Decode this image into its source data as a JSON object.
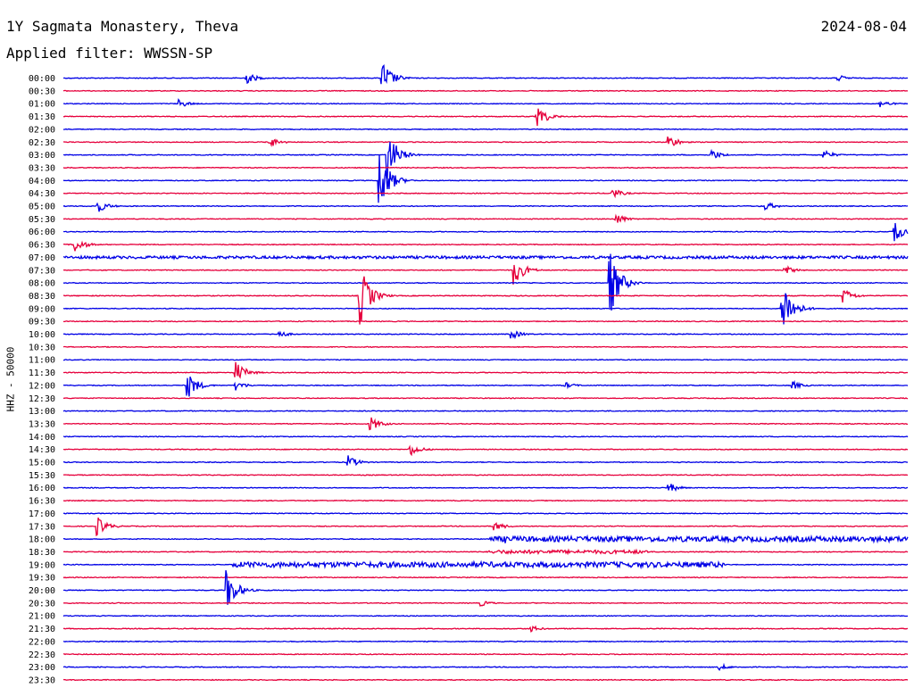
{
  "header": {
    "station": "1Y Sagmata Monastery, Theva",
    "date": "2024-08-04",
    "filter": "Applied filter: WWSSN-SP"
  },
  "axis_label": "HHZ - 50000",
  "chart_data": {
    "type": "line",
    "title": "1Y Sagmata Monastery, Theva",
    "ylabel": "HHZ - 50000",
    "colors": {
      "even_row": "#0000e6",
      "odd_row": "#e6003c"
    },
    "rows": [
      "00:00",
      "00:30",
      "01:00",
      "01:30",
      "02:00",
      "02:30",
      "03:00",
      "03:30",
      "04:00",
      "04:30",
      "05:00",
      "05:30",
      "06:00",
      "06:30",
      "07:00",
      "07:30",
      "08:00",
      "08:30",
      "09:00",
      "09:30",
      "10:00",
      "10:30",
      "11:00",
      "11:30",
      "12:00",
      "12:30",
      "13:00",
      "13:30",
      "14:00",
      "14:30",
      "15:00",
      "15:30",
      "16:00",
      "16:30",
      "17:00",
      "17:30",
      "18:00",
      "18:30",
      "19:00",
      "19:30",
      "20:00",
      "20:30",
      "21:00",
      "21:30",
      "22:00",
      "22:30",
      "23:00",
      "23:30"
    ],
    "events": [
      {
        "row": "00:00",
        "minute": 6.5,
        "amplitude": 7
      },
      {
        "row": "00:00",
        "minute": 11.3,
        "amplitude": 22
      },
      {
        "row": "00:00",
        "minute": 27.5,
        "amplitude": 4
      },
      {
        "row": "01:00",
        "minute": 4.1,
        "amplitude": 5
      },
      {
        "row": "01:00",
        "minute": 29,
        "amplitude": 5
      },
      {
        "row": "01:30",
        "minute": 16.8,
        "amplitude": 15
      },
      {
        "row": "02:30",
        "minute": 7.3,
        "amplitude": 7
      },
      {
        "row": "02:30",
        "minute": 21.5,
        "amplitude": 8
      },
      {
        "row": "03:00",
        "minute": 11.5,
        "amplitude": 30
      },
      {
        "row": "03:00",
        "minute": 23,
        "amplitude": 7
      },
      {
        "row": "03:00",
        "minute": 27,
        "amplitude": 6
      },
      {
        "row": "04:00",
        "minute": 11.2,
        "amplitude": 40
      },
      {
        "row": "04:30",
        "minute": 19.5,
        "amplitude": 6
      },
      {
        "row": "05:00",
        "minute": 1.2,
        "amplitude": 8
      },
      {
        "row": "05:00",
        "minute": 24.9,
        "amplitude": 6
      },
      {
        "row": "05:30",
        "minute": 19.6,
        "amplitude": 7
      },
      {
        "row": "06:00",
        "minute": 29.5,
        "amplitude": 12
      },
      {
        "row": "06:30",
        "minute": 0.4,
        "amplitude": 9
      },
      {
        "row": "07:30",
        "minute": 16,
        "amplitude": 18
      },
      {
        "row": "07:30",
        "minute": 25.6,
        "amplitude": 6
      },
      {
        "row": "08:00",
        "minute": 19.4,
        "amplitude": 40
      },
      {
        "row": "08:30",
        "minute": 10.5,
        "amplitude": 40
      },
      {
        "row": "08:30",
        "minute": 27.7,
        "amplitude": 9
      },
      {
        "row": "09:00",
        "minute": 25.5,
        "amplitude": 40
      },
      {
        "row": "10:00",
        "minute": 7.6,
        "amplitude": 5
      },
      {
        "row": "10:00",
        "minute": 15.9,
        "amplitude": 6
      },
      {
        "row": "11:30",
        "minute": 6.1,
        "amplitude": 14
      },
      {
        "row": "12:00",
        "minute": 4.4,
        "amplitude": 16
      },
      {
        "row": "12:00",
        "minute": 6.1,
        "amplitude": 6
      },
      {
        "row": "12:00",
        "minute": 17.8,
        "amplitude": 4
      },
      {
        "row": "12:00",
        "minute": 25.9,
        "amplitude": 5
      },
      {
        "row": "13:30",
        "minute": 10.9,
        "amplitude": 9
      },
      {
        "row": "14:30",
        "minute": 12.3,
        "amplitude": 8
      },
      {
        "row": "15:00",
        "minute": 10.1,
        "amplitude": 8
      },
      {
        "row": "16:00",
        "minute": 21.5,
        "amplitude": 6
      },
      {
        "row": "17:30",
        "minute": 1.2,
        "amplitude": 11
      },
      {
        "row": "17:30",
        "minute": 15.3,
        "amplitude": 6
      },
      {
        "row": "18:00",
        "minute": 15.7,
        "amplitude": 5
      },
      {
        "row": "20:00",
        "minute": 5.8,
        "amplitude": 24
      },
      {
        "row": "20:30",
        "minute": 14.8,
        "amplitude": 4
      },
      {
        "row": "21:30",
        "minute": 16.6,
        "amplitude": 4
      },
      {
        "row": "23:00",
        "minute": 23.3,
        "amplitude": 4
      }
    ],
    "sustained_noise": [
      {
        "row": "18:00",
        "from_minute": 15.1,
        "to_minute": 30,
        "amplitude": 3
      },
      {
        "row": "18:30",
        "from_minute": 15.1,
        "to_minute": 20.8,
        "amplitude": 2
      },
      {
        "row": "19:00",
        "from_minute": 6,
        "to_minute": 23.5,
        "amplitude": 3
      },
      {
        "row": "07:00",
        "from_minute": 0,
        "to_minute": 30,
        "amplitude": 1.5
      }
    ]
  }
}
